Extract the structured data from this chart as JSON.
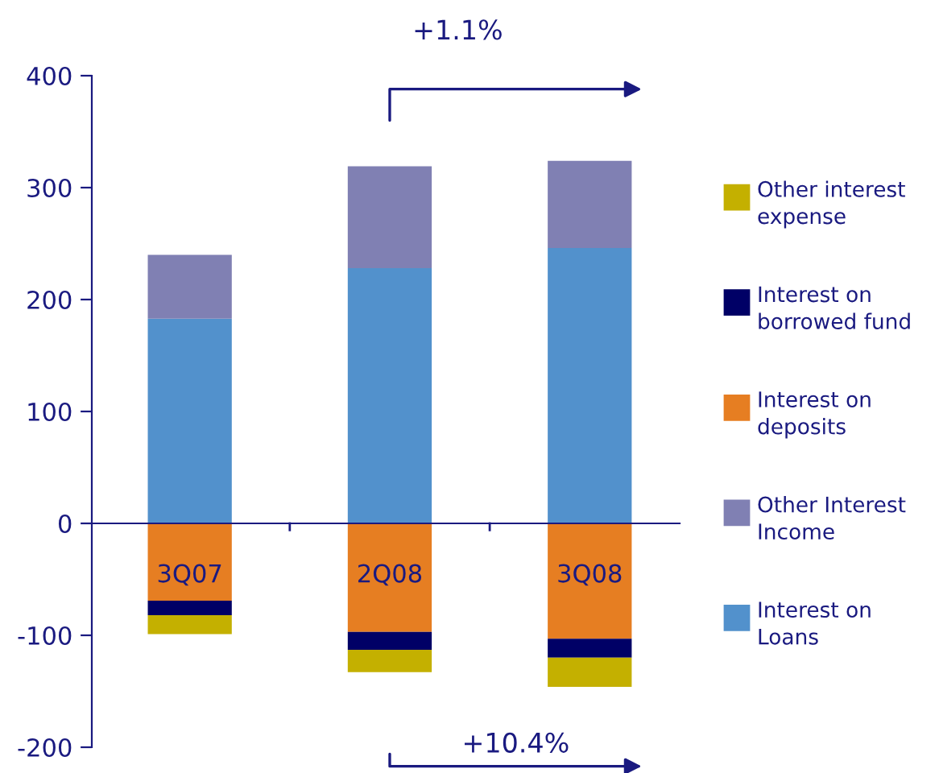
{
  "chart_data": {
    "type": "bar",
    "stacked": true,
    "categories": [
      "3Q07",
      "2Q08",
      "3Q08"
    ],
    "series": [
      {
        "name": "Interest on Loans",
        "color": "#5291cc",
        "values": [
          183,
          228,
          246
        ]
      },
      {
        "name": "Other Interest Income",
        "color": "#8080b3",
        "values": [
          57,
          91,
          78
        ]
      },
      {
        "name": "Interest on deposits",
        "color": "#e67e22",
        "values": [
          -69,
          -97,
          -103
        ]
      },
      {
        "name": "Interest on borrowed fund",
        "color": "#000066",
        "values": [
          -13,
          -16,
          -17
        ]
      },
      {
        "name": "Other interest expense",
        "color": "#c4b000",
        "values": [
          -17,
          -20,
          -26
        ]
      }
    ],
    "ylim": [
      -200,
      400
    ],
    "yticks": [
      -200,
      -100,
      0,
      100,
      200,
      300,
      400
    ],
    "annotations": [
      "+1.1%",
      "+10.4%"
    ],
    "legend": "right",
    "grid": false
  }
}
